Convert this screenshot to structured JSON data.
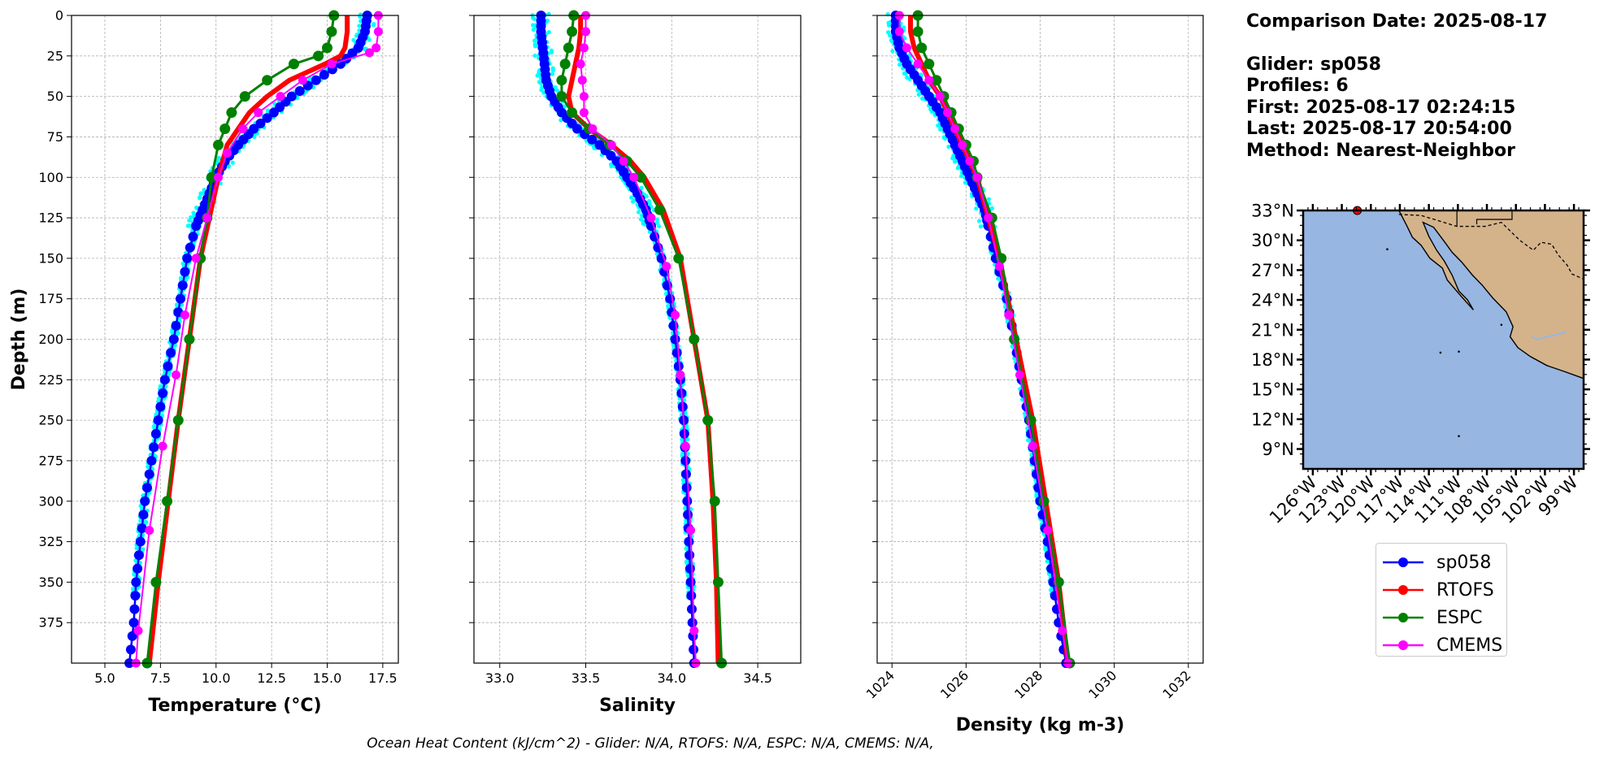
{
  "chart_data": [
    {
      "type": "line",
      "xlabel": "Temperature (°C)",
      "ylabel": "Depth (m)",
      "xlim": [
        3.5,
        18.2
      ],
      "ylim": [
        400,
        0
      ],
      "xticks": [
        "5.0",
        "7.5",
        "10.0",
        "12.5",
        "15.0",
        "17.5"
      ],
      "yticks": [
        "0",
        "25",
        "50",
        "75",
        "100",
        "125",
        "150",
        "175",
        "200",
        "225",
        "250",
        "275",
        "300",
        "325",
        "350",
        "375"
      ],
      "grid": true,
      "series": [
        {
          "name": "sp058",
          "color": "#0000ff",
          "depth": [
            0,
            10,
            20,
            30,
            40,
            50,
            60,
            70,
            80,
            90,
            100,
            110,
            120,
            130,
            150,
            175,
            200,
            225,
            250,
            275,
            300,
            325,
            350,
            375,
            400
          ],
          "values": [
            16.8,
            16.7,
            16.4,
            15.6,
            14.5,
            13.4,
            12.6,
            11.7,
            11.0,
            10.4,
            10.0,
            9.7,
            9.4,
            9.1,
            8.7,
            8.4,
            8.1,
            7.7,
            7.4,
            7.1,
            6.8,
            6.6,
            6.4,
            6.3,
            6.1
          ]
        },
        {
          "name": "RTOFS",
          "color": "#ff0000",
          "depth": [
            0,
            10,
            20,
            25,
            30,
            40,
            50,
            60,
            70,
            80,
            100,
            150,
            250,
            350,
            400
          ],
          "values": [
            15.9,
            15.9,
            15.8,
            15.6,
            14.9,
            13.3,
            12.3,
            11.5,
            11.0,
            10.5,
            10.1,
            9.3,
            8.3,
            7.4,
            7.0
          ]
        },
        {
          "name": "ESPC",
          "color": "#008000",
          "depth": [
            0,
            10,
            20,
            25,
            30,
            40,
            50,
            60,
            70,
            80,
            100,
            125,
            150,
            200,
            250,
            300,
            350,
            400
          ],
          "values": [
            15.3,
            15.2,
            15.0,
            14.6,
            13.5,
            12.3,
            11.3,
            10.7,
            10.4,
            10.1,
            9.8,
            9.6,
            9.3,
            8.8,
            8.3,
            7.8,
            7.3,
            6.9
          ]
        },
        {
          "name": "CMEMS",
          "color": "#ff00ff",
          "depth": [
            0,
            10,
            20,
            23,
            30,
            40,
            50,
            60,
            70,
            85,
            100,
            125,
            150,
            185,
            222,
            266,
            318,
            380,
            400
          ],
          "values": [
            17.3,
            17.3,
            17.2,
            16.9,
            15.2,
            13.9,
            12.9,
            11.9,
            11.2,
            10.5,
            10.1,
            9.6,
            9.1,
            8.6,
            8.2,
            7.6,
            7.0,
            6.5,
            6.4
          ]
        }
      ]
    },
    {
      "type": "line",
      "xlabel": "Salinity",
      "xlim": [
        32.85,
        34.75
      ],
      "ylim": [
        400,
        0
      ],
      "xticks": [
        "33.0",
        "33.5",
        "34.0",
        "34.5"
      ],
      "grid": true,
      "series": [
        {
          "name": "sp058",
          "color": "#0000ff",
          "depth": [
            0,
            10,
            20,
            30,
            40,
            50,
            60,
            70,
            80,
            90,
            100,
            110,
            120,
            130,
            150,
            175,
            200,
            225,
            250,
            275,
            300,
            325,
            350,
            375,
            400
          ],
          "values": [
            33.24,
            33.24,
            33.25,
            33.26,
            33.27,
            33.3,
            33.36,
            33.45,
            33.58,
            33.68,
            33.74,
            33.8,
            33.85,
            33.88,
            33.94,
            33.99,
            34.02,
            34.05,
            34.07,
            34.08,
            34.09,
            34.1,
            34.11,
            34.12,
            34.13
          ]
        },
        {
          "name": "RTOFS",
          "color": "#ff0000",
          "depth": [
            0,
            10,
            20,
            30,
            40,
            50,
            60,
            70,
            80,
            90,
            100,
            120,
            150,
            200,
            250,
            300,
            350,
            400
          ],
          "values": [
            33.47,
            33.47,
            33.46,
            33.44,
            33.42,
            33.4,
            33.42,
            33.52,
            33.65,
            33.76,
            33.84,
            33.95,
            34.05,
            34.13,
            34.21,
            34.24,
            34.26,
            34.27
          ]
        },
        {
          "name": "ESPC",
          "color": "#008000",
          "depth": [
            0,
            10,
            20,
            30,
            40,
            50,
            60,
            70,
            80,
            90,
            100,
            120,
            150,
            200,
            250,
            300,
            350,
            400
          ],
          "values": [
            33.43,
            33.42,
            33.4,
            33.38,
            33.36,
            33.36,
            33.42,
            33.52,
            33.64,
            33.74,
            33.82,
            33.93,
            34.04,
            34.13,
            34.21,
            34.25,
            34.27,
            34.29
          ]
        },
        {
          "name": "CMEMS",
          "color": "#ff00ff",
          "depth": [
            0,
            10,
            20,
            30,
            40,
            50,
            60,
            70,
            80,
            90,
            100,
            125,
            155,
            185,
            222,
            266,
            318,
            380,
            400
          ],
          "values": [
            33.5,
            33.5,
            33.49,
            33.47,
            33.48,
            33.49,
            33.49,
            33.54,
            33.65,
            33.72,
            33.78,
            33.88,
            33.97,
            34.02,
            34.05,
            34.08,
            34.11,
            34.13,
            34.14
          ]
        }
      ]
    },
    {
      "type": "line",
      "xlabel": "Density (kg m-3)",
      "xlim": [
        1023.6,
        1032.4
      ],
      "ylim": [
        400,
        0
      ],
      "xticks": [
        "1024",
        "1026",
        "1028",
        "1030",
        "1032"
      ],
      "grid": true,
      "series": [
        {
          "name": "sp058",
          "color": "#0000ff",
          "depth": [
            0,
            10,
            20,
            30,
            40,
            50,
            60,
            70,
            80,
            90,
            100,
            110,
            120,
            130,
            150,
            175,
            200,
            225,
            250,
            275,
            300,
            325,
            350,
            375,
            400
          ],
          "values": [
            1024.1,
            1024.1,
            1024.2,
            1024.4,
            1024.7,
            1025.0,
            1025.3,
            1025.5,
            1025.7,
            1025.9,
            1026.1,
            1026.3,
            1026.5,
            1026.6,
            1026.8,
            1027.1,
            1027.3,
            1027.5,
            1027.7,
            1027.85,
            1028.0,
            1028.2,
            1028.35,
            1028.5,
            1028.7
          ]
        },
        {
          "name": "RTOFS",
          "color": "#ff0000",
          "depth": [
            0,
            10,
            20,
            30,
            40,
            50,
            60,
            70,
            80,
            90,
            100,
            150,
            250,
            350,
            400
          ],
          "values": [
            1024.5,
            1024.5,
            1024.6,
            1024.8,
            1025.0,
            1025.3,
            1025.5,
            1025.7,
            1025.9,
            1026.1,
            1026.3,
            1026.9,
            1027.8,
            1028.5,
            1028.75
          ]
        },
        {
          "name": "ESPC",
          "color": "#008000",
          "depth": [
            0,
            10,
            20,
            30,
            40,
            50,
            60,
            70,
            80,
            90,
            100,
            125,
            150,
            200,
            250,
            300,
            350,
            400
          ],
          "values": [
            1024.7,
            1024.7,
            1024.8,
            1025.0,
            1025.2,
            1025.4,
            1025.6,
            1025.8,
            1026.0,
            1026.2,
            1026.3,
            1026.7,
            1026.95,
            1027.3,
            1027.75,
            1028.1,
            1028.5,
            1028.8
          ]
        },
        {
          "name": "CMEMS",
          "color": "#ff00ff",
          "depth": [
            0,
            10,
            20,
            30,
            40,
            50,
            60,
            70,
            80,
            90,
            100,
            125,
            155,
            185,
            222,
            266,
            318,
            380,
            400
          ],
          "values": [
            1024.2,
            1024.2,
            1024.4,
            1024.7,
            1025.0,
            1025.3,
            1025.5,
            1025.7,
            1025.9,
            1026.1,
            1026.3,
            1026.6,
            1026.9,
            1027.15,
            1027.45,
            1027.8,
            1028.2,
            1028.6,
            1028.75
          ]
        }
      ]
    },
    {
      "type": "map",
      "lon_ticks": [
        "126°W",
        "123°W",
        "120°W",
        "117°W",
        "114°W",
        "111°W",
        "108°W",
        "105°W",
        "102°W",
        "99°W"
      ],
      "lat_ticks": [
        "33°N",
        "30°N",
        "27°N",
        "24°N",
        "21°N",
        "18°N",
        "15°N",
        "12°N",
        "9°N"
      ],
      "lon_range": [
        -127,
        -98
      ],
      "lat_range": [
        7,
        33
      ],
      "glider_position": {
        "lon": -121.4,
        "lat": 33
      },
      "ocean_color": "#97b6e1",
      "land_color": "#d4b38b"
    }
  ],
  "info": {
    "comparison_date": "Comparison Date: 2025-08-17",
    "glider": "Glider: sp058",
    "profiles": "Profiles: 6",
    "first": "First: 2025-08-17 02:24:15",
    "last": "Last: 2025-08-17 20:54:00",
    "method": "Method: Nearest-Neighbor"
  },
  "legend": {
    "items": [
      {
        "label": "sp058",
        "color": "#0000ff"
      },
      {
        "label": "RTOFS",
        "color": "#ff0000"
      },
      {
        "label": "ESPC",
        "color": "#008000"
      },
      {
        "label": "CMEMS",
        "color": "#ff00ff"
      }
    ]
  },
  "footer": "Ocean Heat Content (kJ/cm^2) - Glider: N/A,  RTOFS: N/A,  ESPC: N/A,  CMEMS: N/A,",
  "colors": {
    "glider_raw": "#00ffff"
  }
}
